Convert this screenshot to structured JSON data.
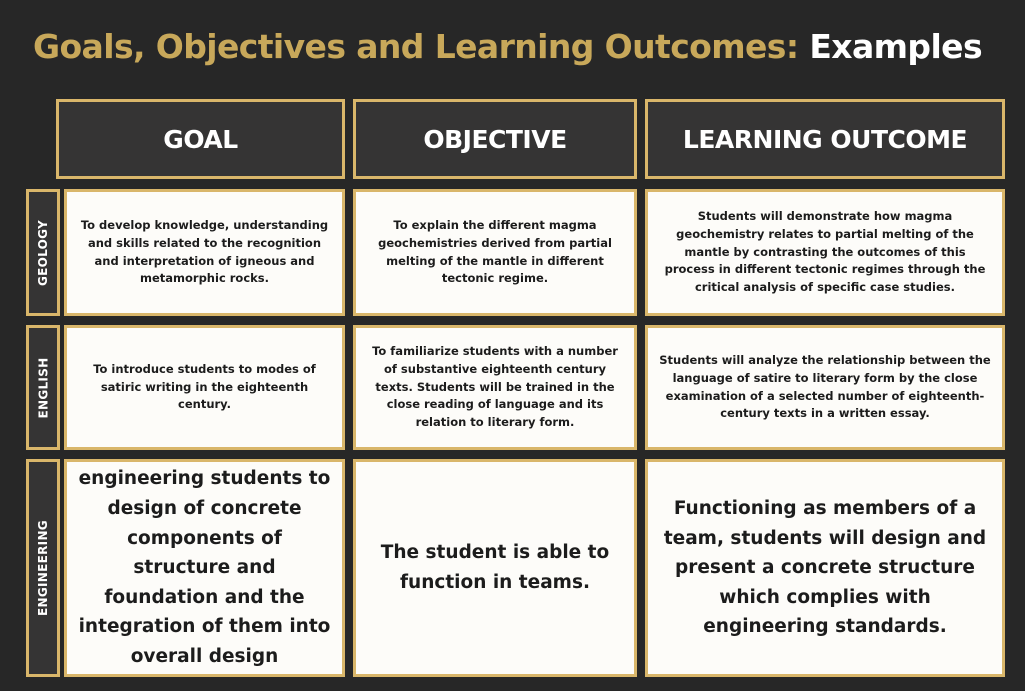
{
  "title": {
    "main": "Goals, Objectives and Learning Outcomes:",
    "accent": "Examples"
  },
  "headers": {
    "goal": "GOAL",
    "objective": "OBJECTIVE",
    "outcome": "LEARNING OUTCOME"
  },
  "rows": [
    {
      "subject": "GEOLOGY",
      "goal": "To develop knowledge, understanding and skills related to the recognition and interpretation of igneous and metamorphic rocks.",
      "objective": "To explain the different magma geochemistries derived from partial melting of the mantle in different tectonic regime.",
      "outcome": "Students will demonstrate how magma geochemistry relates to partial melting of the mantle by contrasting the outcomes of this process in different tectonic regimes through the critical analysis of specific case studies."
    },
    {
      "subject": "ENGLISH",
      "goal": "To introduce students to modes of satiric writing in the eighteenth century.",
      "objective": "To familiarize students with a number of substantive eighteenth century texts.  Students will be trained in the close reading of language and its relation to literary form.",
      "outcome": "Students will analyze the relationship between the language of satire to literary form by the close examination of a selected number of eighteenth-century texts in a written essay."
    },
    {
      "subject": "ENGINEERING",
      "goal": "To introduce senior engineering students to design of concrete components of structure and foundation and the integration of them into overall design structures.",
      "objective": "The student is able to function in teams.",
      "outcome": "Functioning as members of a team, students will design and present a concrete structure which complies with engineering standards."
    }
  ],
  "colors": {
    "background": "#272727",
    "title_gold": "#c8a85a",
    "border_gold": "#d9b66a",
    "header_fill": "#353434",
    "cell_fill": "#fdfcf9"
  }
}
